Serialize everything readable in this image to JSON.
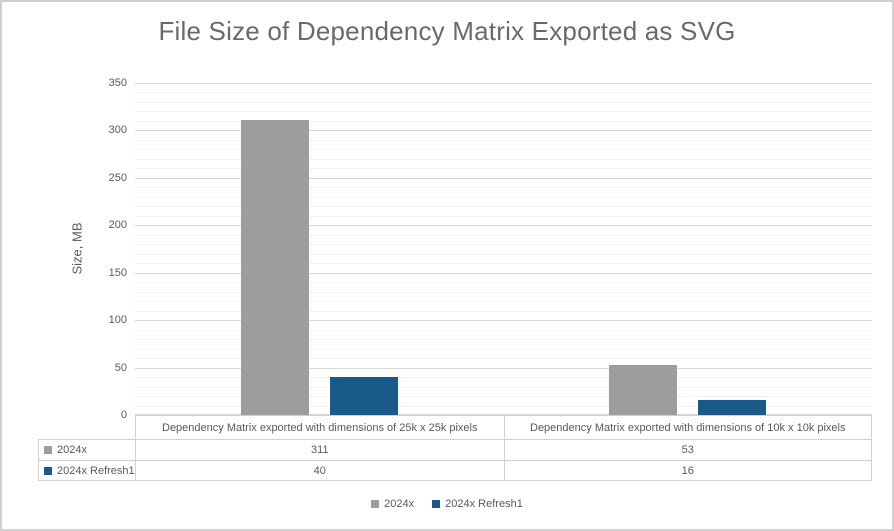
{
  "chart_data": {
    "type": "bar",
    "title": "File Size of Dependency Matrix Exported as SVG",
    "ylabel": "Size, MB",
    "xlabel": "",
    "categories": [
      "Dependency Matrix exported with dimensions of 25k x 25k pixels",
      "Dependency Matrix exported with dimensions of 10k x 10k pixels"
    ],
    "series": [
      {
        "name": "2024x",
        "color": "#9d9d9d",
        "values": [
          311,
          53
        ]
      },
      {
        "name": "2024x Refresh1",
        "color": "#1a5a88",
        "values": [
          40,
          16
        ]
      }
    ],
    "ylim": [
      0,
      350
    ],
    "y_major_unit": 50,
    "y_minor_unit": 10,
    "grid": "horizontal major and minor gridlines",
    "legend_position": "bottom",
    "data_table_shown": true
  },
  "colors": {
    "title_text": "#6a6a6a",
    "axis_text": "#595959",
    "major_gridline": "#d9d9d9",
    "minor_gridline": "#f2f2f2",
    "table_border": "#d0d0d0",
    "chart_border": "#d2d0ce",
    "background": "#ffffff"
  }
}
